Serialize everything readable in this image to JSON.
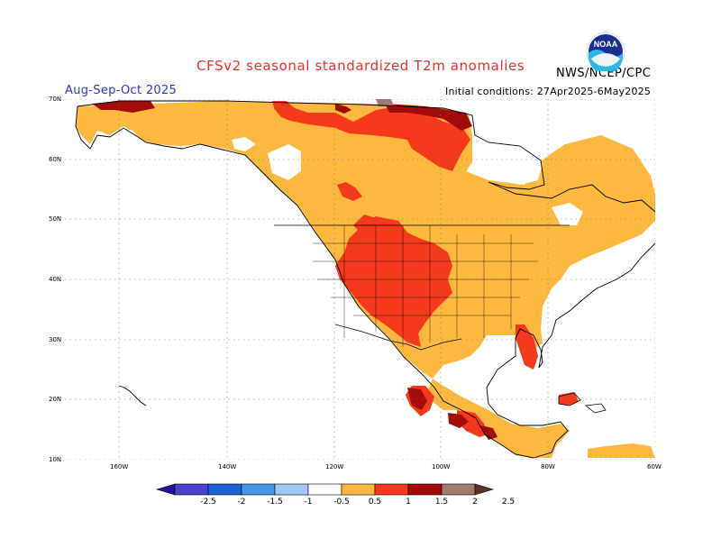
{
  "title": "CFSv2 seasonal standardized T2m anomalies",
  "agency": "NWS/NCEP/CPC",
  "period": "Aug-Sep-Oct 2025",
  "initial_conditions": "Initial conditions: 27Apr2025-6May2025",
  "logo_text": "NOAA",
  "colors": {
    "title": "#e8302b",
    "period": "#3030d0",
    "map_text": "#000000"
  },
  "lat_labels": [
    "70N",
    "60N",
    "50N",
    "40N",
    "30N",
    "20N",
    "10N"
  ],
  "lon_labels": [
    "160W",
    "140W",
    "120W",
    "100W",
    "80W",
    "60W"
  ],
  "legend": {
    "labels": [
      "-2.5",
      "-2",
      "-1.5",
      "-1",
      "-0.5",
      "0.5",
      "1",
      "1.5",
      "2",
      "2.5"
    ],
    "colors": [
      "#2a0f9c",
      "#4b41cf",
      "#1c61d8",
      "#4397e8",
      "#9fc8f4",
      "#ffffff",
      "#fdb93f",
      "#f5391c",
      "#a40c0c",
      "#a17b72",
      "#5b3528"
    ]
  },
  "anomaly_categories": [
    {
      "range": "0.5 to 1",
      "color": "#fdb93f"
    },
    {
      "range": "1 to 1.5",
      "color": "#f5391c"
    },
    {
      "range": "1.5 to 2",
      "color": "#a40c0c"
    },
    {
      "range": "2 to 2.5",
      "color": "#a17b72"
    }
  ]
}
